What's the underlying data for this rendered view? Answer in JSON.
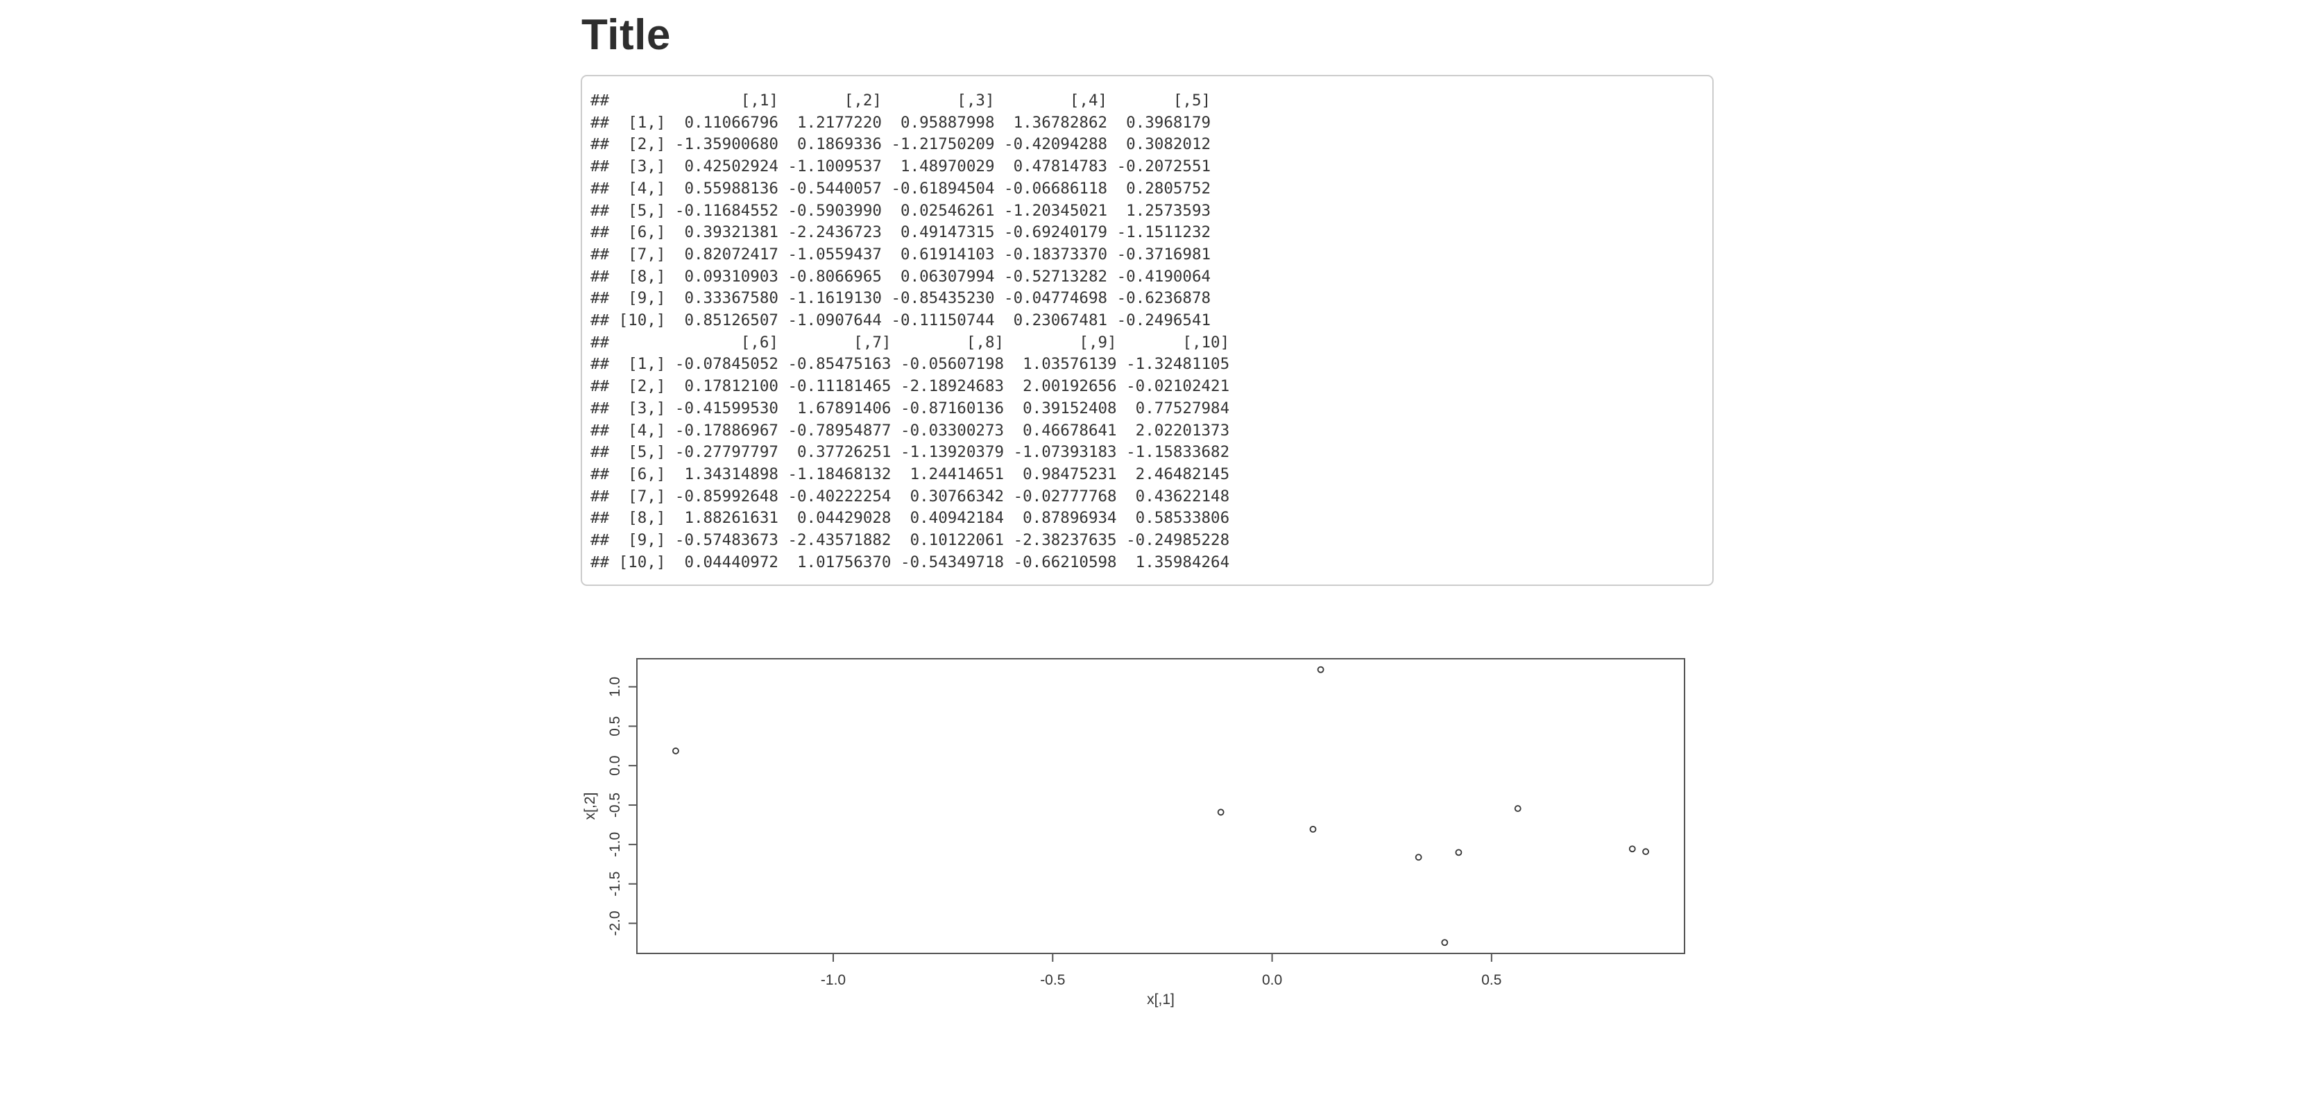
{
  "page": {
    "title": "Title",
    "background_color": "#ffffff"
  },
  "console_output": {
    "lines": [
      "##              [,1]       [,2]        [,3]        [,4]       [,5]",
      "##  [1,]  0.11066796  1.2177220  0.95887998  1.36782862  0.3968179",
      "##  [2,] -1.35900680  0.1869336 -1.21750209 -0.42094288  0.3082012",
      "##  [3,]  0.42502924 -1.1009537  1.48970029  0.47814783 -0.2072551",
      "##  [4,]  0.55988136 -0.5440057 -0.61894504 -0.06686118  0.2805752",
      "##  [5,] -0.11684552 -0.5903990  0.02546261 -1.20345021  1.2573593",
      "##  [6,]  0.39321381 -2.2436723  0.49147315 -0.69240179 -1.1511232",
      "##  [7,]  0.82072417 -1.0559437  0.61914103 -0.18373370 -0.3716981",
      "##  [8,]  0.09310903 -0.8066965  0.06307994 -0.52713282 -0.4190064",
      "##  [9,]  0.33367580 -1.1619130 -0.85435230 -0.04774698 -0.6236878",
      "## [10,]  0.85126507 -1.0907644 -0.11150744  0.23067481 -0.2496541",
      "##              [,6]        [,7]        [,8]        [,9]       [,10]",
      "##  [1,] -0.07845052 -0.85475163 -0.05607198  1.03576139 -1.32481105",
      "##  [2,]  0.17812100 -0.11181465 -2.18924683  2.00192656 -0.02102421",
      "##  [3,] -0.41599530  1.67891406 -0.87160136  0.39152408  0.77527984",
      "##  [4,] -0.17886967 -0.78954877 -0.03300273  0.46678641  2.02201373",
      "##  [5,] -0.27797797  0.37726251 -1.13920379 -1.07393183 -1.15833682",
      "##  [6,]  1.34314898 -1.18468132  1.24414651  0.98475231  2.46482145",
      "##  [7,] -0.85992648 -0.40222254  0.30766342 -0.02777768  0.43622148",
      "##  [8,]  1.88261631  0.04429028  0.40942184  0.87896934  0.58533806",
      "##  [9,] -0.57483673 -2.43571882  0.10122061 -2.38237635 -0.24985228",
      "## [10,]  0.04440972  1.01756370 -0.54349718 -0.66210598  1.35984264"
    ],
    "border_color": "#cccccc",
    "text_color": "#333333",
    "background_color": "#ffffff"
  },
  "chart_data": {
    "type": "scatter",
    "title": "",
    "xlabel": "x[,1]",
    "ylabel": "x[,2]",
    "x": [
      0.11066796,
      -1.3590068,
      0.42502924,
      0.55988136,
      -0.11684552,
      0.39321381,
      0.82072417,
      0.09310903,
      0.3336758,
      0.85126507
    ],
    "y": [
      1.217722,
      0.1869336,
      -1.1009537,
      -0.5440057,
      -0.590399,
      -2.2436723,
      -1.0559437,
      -0.8066965,
      -1.161913,
      -1.0907644
    ],
    "xlim": [
      -1.4474,
      0.9397
    ],
    "ylim": [
      -2.3821,
      1.3562
    ],
    "x_ticks": [
      "-1.0",
      "-0.5",
      "0.0",
      "0.5"
    ],
    "y_ticks": [
      "1.0",
      "0.5",
      "0.0",
      "-0.5",
      "-1.0",
      "-1.5",
      "-2.0"
    ],
    "grid": false,
    "legend": false,
    "point_style": "open-circle",
    "axis_color": "#555555",
    "text_color": "#333333"
  }
}
